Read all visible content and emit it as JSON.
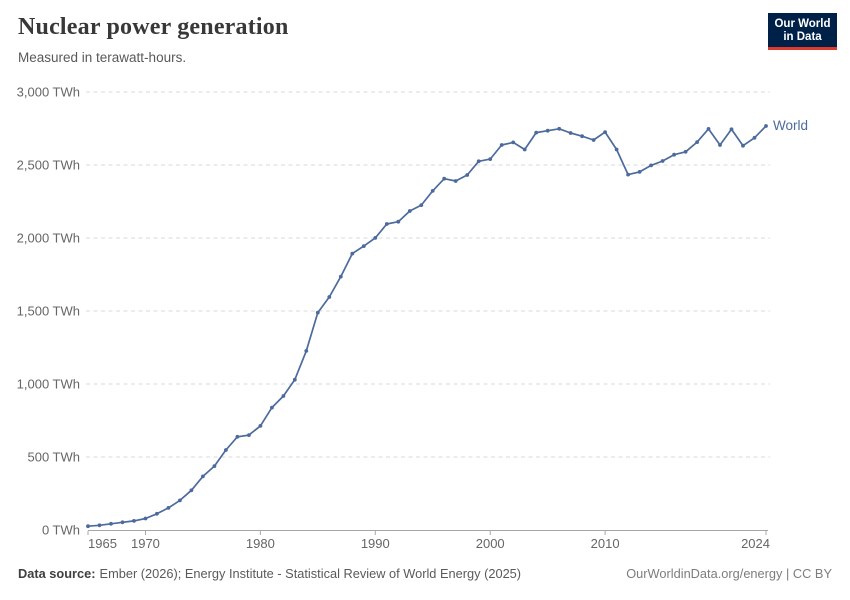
{
  "header": {
    "title": "Nuclear power generation",
    "subtitle": "Measured in terawatt-hours.",
    "logo": {
      "line1": "Our World",
      "line2": "in Data",
      "bg_color": "#002147",
      "accent_color": "#dc3a2d"
    }
  },
  "chart_data": {
    "type": "line",
    "title": "Nuclear power generation",
    "unit": "TWh",
    "xlabel": "",
    "ylabel": "",
    "ylim": [
      0,
      3000
    ],
    "grid": "horizontal-dashed",
    "legend_position": "end-of-line-label",
    "y_ticks": [
      0,
      500,
      1000,
      1500,
      2000,
      2500,
      3000
    ],
    "y_tick_labels": [
      "0 TWh",
      "500 TWh",
      "1,000 TWh",
      "1,500 TWh",
      "2,000 TWh",
      "2,500 TWh",
      "3,000 TWh"
    ],
    "x_ticks": [
      {
        "year": 1965,
        "label": "1965",
        "align": "start"
      },
      {
        "year": 1970,
        "label": "1970",
        "align": "middle"
      },
      {
        "year": 1980,
        "label": "1980",
        "align": "middle"
      },
      {
        "year": 1990,
        "label": "1990",
        "align": "middle"
      },
      {
        "year": 2000,
        "label": "2000",
        "align": "middle"
      },
      {
        "year": 2010,
        "label": "2010",
        "align": "middle"
      },
      {
        "year": 2024,
        "label": "2024",
        "align": "end"
      }
    ],
    "x": [
      1965,
      1966,
      1967,
      1968,
      1969,
      1970,
      1971,
      1972,
      1973,
      1974,
      1975,
      1976,
      1977,
      1978,
      1979,
      1980,
      1981,
      1982,
      1983,
      1984,
      1985,
      1986,
      1987,
      1988,
      1989,
      1990,
      1991,
      1992,
      1993,
      1994,
      1995,
      1996,
      1997,
      1998,
      1999,
      2000,
      2001,
      2002,
      2003,
      2004,
      2005,
      2006,
      2007,
      2008,
      2009,
      2010,
      2011,
      2012,
      2013,
      2014,
      2015,
      2016,
      2017,
      2018,
      2019,
      2020,
      2021,
      2022,
      2023,
      2024
    ],
    "series": [
      {
        "name": "World",
        "color": "#4C6A9C",
        "values": [
          25.7,
          32.0,
          42.2,
          52.7,
          62.0,
          78.6,
          110.8,
          151.6,
          202.8,
          271.9,
          367.2,
          437.7,
          548.2,
          638.2,
          650.2,
          712.9,
          838.2,
          917.7,
          1029.3,
          1226.8,
          1488.8,
          1596.1,
          1735.3,
          1893.0,
          1944.4,
          2000.5,
          2096.1,
          2111.6,
          2185.1,
          2225.0,
          2322.5,
          2406.2,
          2390.4,
          2431.5,
          2525.1,
          2540.2,
          2636.7,
          2654.5,
          2606.0,
          2722.2,
          2735.2,
          2748.2,
          2719.0,
          2697.3,
          2671.4,
          2725.0,
          2606.2,
          2434.0,
          2452.4,
          2497.4,
          2527.7,
          2570.4,
          2590.1,
          2657.0,
          2747.0,
          2637.0,
          2744.2,
          2632.1,
          2686.0,
          2767.0
        ]
      }
    ]
  },
  "footer": {
    "source_label": "Data source:",
    "source_text": "Ember (2026); Energy Institute - Statistical Review of World Energy (2025)",
    "right_text": "OurWorldinData.org/energy | CC BY"
  },
  "colors": {
    "series_blue": "#4C6A9C",
    "gridline": "#dadada",
    "axis": "#a7a7a7",
    "tick_text": "#666666",
    "title_text": "#383838",
    "logo_navy": "#002147",
    "logo_red": "#dc3a2d"
  }
}
